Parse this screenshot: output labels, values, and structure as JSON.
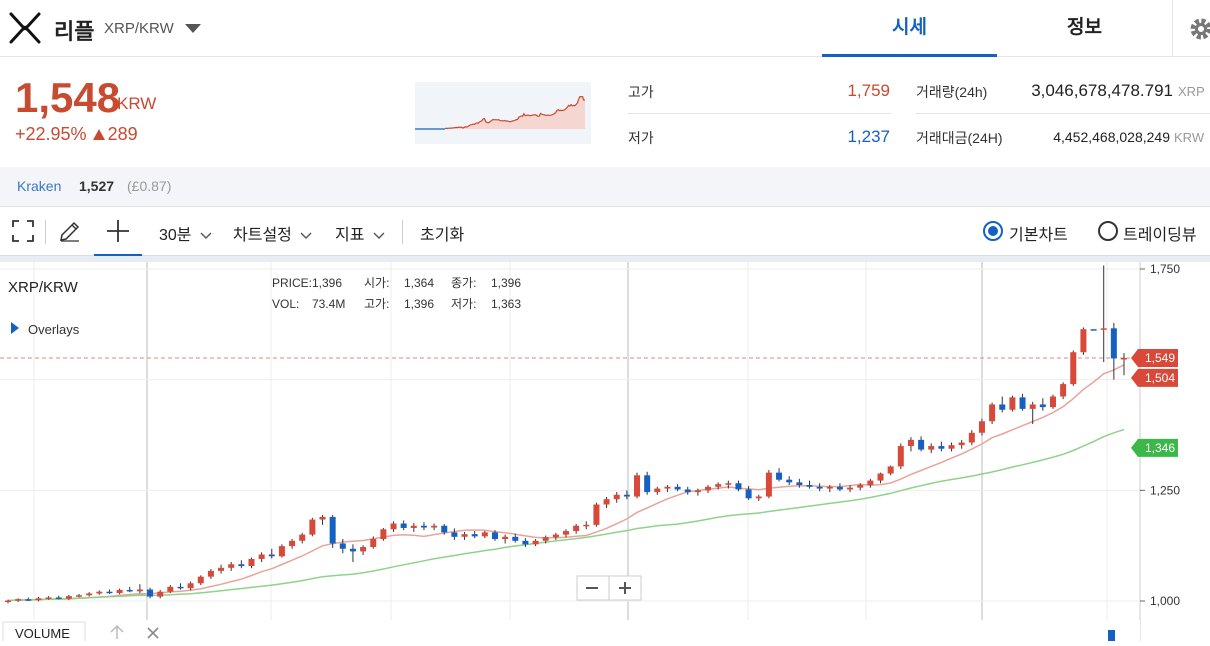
{
  "header": {
    "coin_name": "리플",
    "pair": "XRP/KRW",
    "tabs": [
      {
        "label": "시세"
      },
      {
        "label": "정보"
      }
    ]
  },
  "summary": {
    "price": "1,548",
    "currency": "KRW",
    "change_percent": "+22.95%",
    "change_amount": "289",
    "high_label": "고가",
    "high_value": "1,759",
    "low_label": "저가",
    "low_value": "1,237",
    "volume_label": "거래량(24h)",
    "volume_value": "3,046,678,478.791",
    "volume_unit": "XRP",
    "amount_label": "거래대금(24H)",
    "amount_value": "4,452,468,028,249",
    "amount_unit": "KRW"
  },
  "exchange": {
    "name": "Kraken",
    "price": "1,527",
    "gbp": "(£0.87)"
  },
  "toolbar": {
    "interval": "30분",
    "chart_settings": "차트설정",
    "indicators": "지표",
    "reset": "초기화",
    "basic_chart": "기본차트",
    "tradingview": "트레이딩뷰"
  },
  "colors": {
    "up": "#c84a31",
    "down": "#1561c2",
    "ma_short": "#e8a49a",
    "ma_long": "#8fd38a",
    "accent": "#1561c2"
  },
  "chart_data": {
    "type": "candlestick",
    "symbol": "XRP/KRW",
    "overlays_label": "Overlays",
    "ohlc_readout": {
      "price_label": "PRICE:",
      "price": "1,396",
      "vol_label": "VOL:",
      "vol": "73.4M",
      "open_label": "시가:",
      "open": "1,364",
      "high_label": "고가:",
      "high": "1,396",
      "close_label": "종가:",
      "close": "1,396",
      "low_label": "저가:",
      "low": "1,363"
    },
    "y_ticks": [
      "1,750",
      "1,250",
      "1,000"
    ],
    "ylim": [
      980,
      1760
    ],
    "last_price_tags": [
      {
        "value": 1549,
        "label": "1,549",
        "color": "#d9493a"
      },
      {
        "value": 1504,
        "label": "1,504",
        "color": "#d9493a"
      },
      {
        "value": 1346,
        "label": "1,346",
        "color": "#3cb84a"
      }
    ],
    "candles": [
      [
        998,
        1003,
        995,
        1001
      ],
      [
        1001,
        1006,
        998,
        1004
      ],
      [
        1004,
        1008,
        1000,
        1002
      ],
      [
        1002,
        1009,
        999,
        1006
      ],
      [
        1006,
        1011,
        1003,
        1008
      ],
      [
        1008,
        1012,
        1004,
        1005
      ],
      [
        1005,
        1014,
        1002,
        1011
      ],
      [
        1011,
        1016,
        1008,
        1013
      ],
      [
        1013,
        1020,
        1010,
        1017
      ],
      [
        1017,
        1024,
        1014,
        1021
      ],
      [
        1021,
        1026,
        1016,
        1018
      ],
      [
        1018,
        1028,
        1015,
        1025
      ],
      [
        1025,
        1032,
        1020,
        1022
      ],
      [
        1022,
        1038,
        1018,
        1026
      ],
      [
        1026,
        1030,
        1006,
        1010
      ],
      [
        1010,
        1025,
        1006,
        1021
      ],
      [
        1021,
        1036,
        1018,
        1032
      ],
      [
        1032,
        1040,
        1026,
        1029
      ],
      [
        1029,
        1044,
        1024,
        1040
      ],
      [
        1040,
        1058,
        1036,
        1055
      ],
      [
        1055,
        1072,
        1050,
        1068
      ],
      [
        1068,
        1082,
        1062,
        1075
      ],
      [
        1075,
        1088,
        1068,
        1083
      ],
      [
        1083,
        1092,
        1074,
        1079
      ],
      [
        1079,
        1098,
        1074,
        1095
      ],
      [
        1095,
        1110,
        1088,
        1105
      ],
      [
        1105,
        1118,
        1096,
        1101
      ],
      [
        1101,
        1128,
        1098,
        1124
      ],
      [
        1124,
        1140,
        1118,
        1136
      ],
      [
        1136,
        1154,
        1130,
        1150
      ],
      [
        1150,
        1188,
        1146,
        1184
      ],
      [
        1184,
        1194,
        1172,
        1190
      ],
      [
        1190,
        1194,
        1120,
        1130
      ],
      [
        1130,
        1140,
        1108,
        1118
      ],
      [
        1118,
        1128,
        1088,
        1112
      ],
      [
        1112,
        1126,
        1104,
        1122
      ],
      [
        1122,
        1146,
        1118,
        1140
      ],
      [
        1140,
        1165,
        1136,
        1162
      ],
      [
        1162,
        1180,
        1156,
        1175
      ],
      [
        1175,
        1182,
        1160,
        1165
      ],
      [
        1165,
        1176,
        1156,
        1170
      ],
      [
        1170,
        1178,
        1160,
        1166
      ],
      [
        1166,
        1175,
        1160,
        1170
      ],
      [
        1170,
        1174,
        1150,
        1155
      ],
      [
        1155,
        1164,
        1138,
        1145
      ],
      [
        1145,
        1156,
        1138,
        1151
      ],
      [
        1151,
        1158,
        1142,
        1146
      ],
      [
        1146,
        1158,
        1142,
        1155
      ],
      [
        1155,
        1160,
        1136,
        1140
      ],
      [
        1140,
        1150,
        1130,
        1145
      ],
      [
        1145,
        1152,
        1132,
        1136
      ],
      [
        1136,
        1142,
        1122,
        1128
      ],
      [
        1128,
        1140,
        1124,
        1136
      ],
      [
        1136,
        1148,
        1130,
        1144
      ],
      [
        1144,
        1154,
        1138,
        1150
      ],
      [
        1150,
        1162,
        1144,
        1158
      ],
      [
        1158,
        1174,
        1152,
        1170
      ],
      [
        1170,
        1180,
        1162,
        1172
      ],
      [
        1172,
        1222,
        1168,
        1218
      ],
      [
        1218,
        1235,
        1210,
        1230
      ],
      [
        1230,
        1246,
        1222,
        1240
      ],
      [
        1240,
        1250,
        1230,
        1236
      ],
      [
        1236,
        1290,
        1232,
        1284
      ],
      [
        1284,
        1292,
        1240,
        1246
      ],
      [
        1246,
        1258,
        1240,
        1254
      ],
      [
        1254,
        1262,
        1246,
        1258
      ],
      [
        1258,
        1264,
        1248,
        1252
      ],
      [
        1252,
        1258,
        1240,
        1246
      ],
      [
        1246,
        1254,
        1238,
        1250
      ],
      [
        1250,
        1262,
        1244,
        1258
      ],
      [
        1258,
        1268,
        1252,
        1264
      ],
      [
        1264,
        1272,
        1254,
        1266
      ],
      [
        1266,
        1272,
        1248,
        1252
      ],
      [
        1252,
        1260,
        1228,
        1232
      ],
      [
        1232,
        1240,
        1226,
        1236
      ],
      [
        1236,
        1296,
        1232,
        1290
      ],
      [
        1290,
        1300,
        1270,
        1274
      ],
      [
        1274,
        1282,
        1262,
        1268
      ],
      [
        1268,
        1276,
        1256,
        1262
      ],
      [
        1262,
        1272,
        1254,
        1258
      ],
      [
        1258,
        1266,
        1248,
        1254
      ],
      [
        1254,
        1262,
        1246,
        1258
      ],
      [
        1258,
        1266,
        1248,
        1252
      ],
      [
        1252,
        1262,
        1246,
        1256
      ],
      [
        1256,
        1266,
        1250,
        1262
      ],
      [
        1262,
        1276,
        1256,
        1272
      ],
      [
        1272,
        1290,
        1266,
        1288
      ],
      [
        1288,
        1306,
        1284,
        1304
      ],
      [
        1304,
        1356,
        1298,
        1350
      ],
      [
        1350,
        1370,
        1338,
        1364
      ],
      [
        1364,
        1372,
        1338,
        1342
      ],
      [
        1342,
        1356,
        1334,
        1350
      ],
      [
        1350,
        1360,
        1338,
        1344
      ],
      [
        1344,
        1358,
        1338,
        1352
      ],
      [
        1352,
        1364,
        1344,
        1358
      ],
      [
        1358,
        1386,
        1352,
        1380
      ],
      [
        1380,
        1412,
        1374,
        1406
      ],
      [
        1406,
        1448,
        1400,
        1444
      ],
      [
        1444,
        1462,
        1426,
        1432
      ],
      [
        1432,
        1464,
        1428,
        1460
      ],
      [
        1460,
        1468,
        1430,
        1434
      ],
      [
        1434,
        1450,
        1400,
        1444
      ],
      [
        1444,
        1458,
        1430,
        1438
      ],
      [
        1438,
        1466,
        1434,
        1462
      ],
      [
        1462,
        1494,
        1456,
        1490
      ],
      [
        1490,
        1566,
        1486,
        1562
      ],
      [
        1562,
        1618,
        1556,
        1614
      ],
      [
        1614,
        1612,
        1612,
        1612
      ],
      [
        1614,
        1758,
        1540,
        1616
      ],
      [
        1616,
        1628,
        1500,
        1548
      ],
      [
        1548,
        1560,
        1510,
        1549
      ]
    ]
  }
}
